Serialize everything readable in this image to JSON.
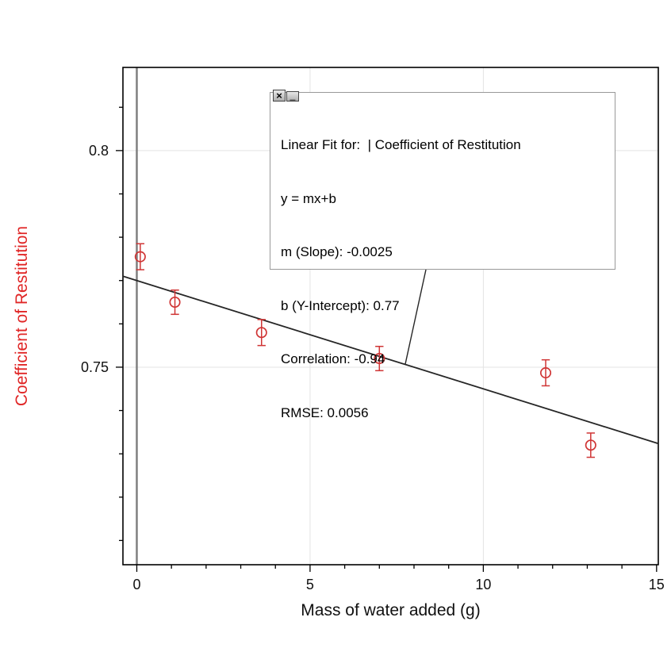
{
  "page": {
    "background": "#ffffff"
  },
  "colors": {
    "point_red": "#d03535",
    "y_axis_label_red": "#e02626",
    "x_axis_label": "#111111",
    "tick_label": "#111111",
    "tick": "#000000",
    "fit_line": "#262626",
    "frame": "#000000",
    "grid": "#e3e3e3",
    "zero_line": "#7f7f7f",
    "box_border": "#999999",
    "box_background": "#ffffff"
  },
  "chart_data": {
    "type": "scatter",
    "title": "",
    "xlabel": "Mass of water added (g)",
    "ylabel": "Coefficient of Restitution",
    "xlim": [
      -0.4,
      15.05
    ],
    "ylim": [
      0.7044,
      0.8192
    ],
    "grid": true,
    "x_major_ticks": [
      {
        "v": 0,
        "label": "0"
      },
      {
        "v": 5,
        "label": "5"
      },
      {
        "v": 10,
        "label": "10"
      },
      {
        "v": 15,
        "label": "15"
      }
    ],
    "x_minor_step": 1,
    "y_major_ticks": [
      {
        "v": 0.75,
        "label": "0.75"
      },
      {
        "v": 0.8,
        "label": "0.8"
      }
    ],
    "y_minor_step": 0.01,
    "zero_line_x": 0,
    "series": [
      {
        "name": "Coefficient of Restitution",
        "points": [
          {
            "x": 0.1,
            "y": 0.7755,
            "yerr": 0.003
          },
          {
            "x": 1.1,
            "y": 0.765,
            "yerr": 0.0028
          },
          {
            "x": 3.6,
            "y": 0.758,
            "yerr": 0.003
          },
          {
            "x": 7.0,
            "y": 0.752,
            "yerr": 0.0028
          },
          {
            "x": 11.8,
            "y": 0.7487,
            "yerr": 0.003
          },
          {
            "x": 13.1,
            "y": 0.732,
            "yerr": 0.0028
          }
        ]
      }
    ],
    "fit": {
      "type": "linear",
      "slope": -0.0025,
      "intercept": 0.77,
      "correlation": -0.94,
      "rmse": 0.0056
    }
  },
  "fit_box": {
    "title": "Linear Fit for:  | Coefficient of Restitution",
    "equation": "y = mx+b",
    "slope_line": "m (Slope): -0.0025",
    "intercept_line": "b (Y-Intercept): 0.77",
    "correlation_line": "Correlation: -0.94",
    "rmse_line": "RMSE: 0.0056",
    "close_glyph": "×",
    "minimize_glyph": "_"
  }
}
